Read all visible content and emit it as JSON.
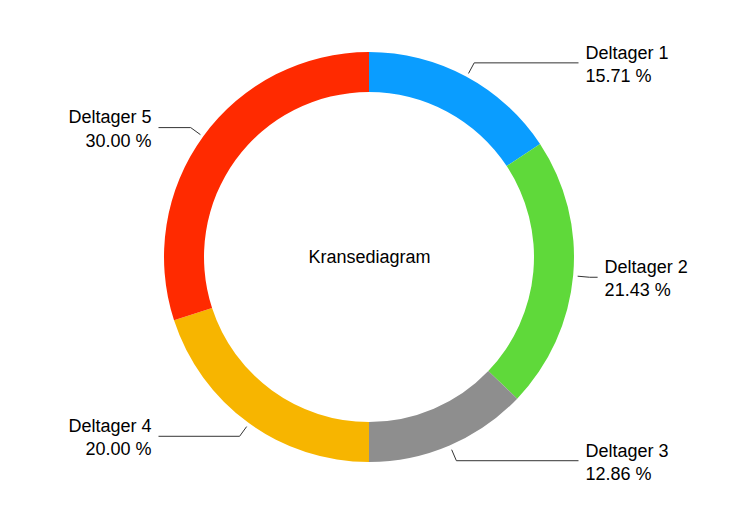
{
  "chart_data": {
    "type": "pie",
    "title": "Kransediagram",
    "categories": [
      "Deltager 1",
      "Deltager 2",
      "Deltager 3",
      "Deltager 4",
      "Deltager 5"
    ],
    "values": [
      15.71,
      21.43,
      12.86,
      20.0,
      30.0
    ],
    "value_labels": [
      "15.71 %",
      "21.43 %",
      "12.86 %",
      "20.00 %",
      "30.00 %"
    ],
    "colors": [
      "#0a9dff",
      "#5fd93a",
      "#8e8e8e",
      "#f7b500",
      "#ff2a00"
    ],
    "data_labels": true
  }
}
